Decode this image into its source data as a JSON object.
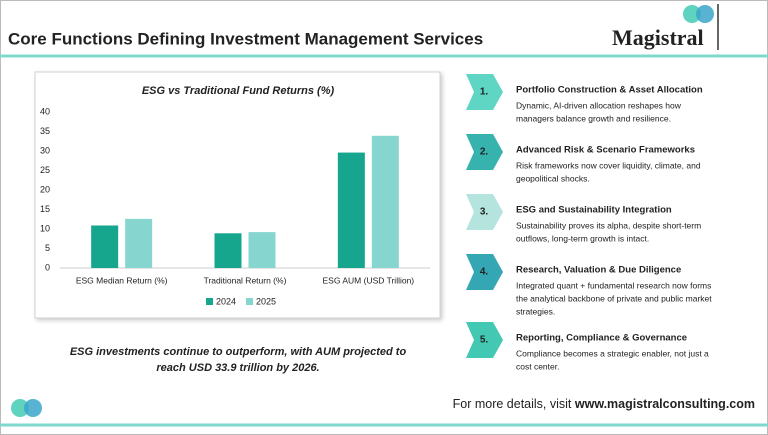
{
  "header": {
    "title": "Core Functions Defining Investment Management Services",
    "logo": "Magistral"
  },
  "chart_data": {
    "type": "bar",
    "title": "ESG vs Traditional Fund Returns (%)",
    "categories": [
      "ESG Median Return (%)",
      "Traditional Return (%)",
      "ESG AUM (USD Trillion)"
    ],
    "series": [
      {
        "name": "2024",
        "color": "#16a68e",
        "values": [
          10.9,
          8.9,
          29.6
        ]
      },
      {
        "name": "2025",
        "color": "#86d6cf",
        "values": [
          12.6,
          9.2,
          33.9
        ]
      }
    ],
    "ylim": [
      0,
      40
    ],
    "yticks": [
      0,
      5,
      10,
      15,
      20,
      25,
      30,
      35,
      40
    ],
    "grid": false,
    "legend": "bottom"
  },
  "caption": [
    "ESG investments continue to outperform, with AUM projected to",
    "reach USD 33.9 trillion by 2026."
  ],
  "items": [
    {
      "number": "1.",
      "title": "Portfolio Construction & Asset Allocation",
      "desc": [
        "Dynamic, AI-driven allocation reshapes how",
        "managers balance growth and resilience."
      ]
    },
    {
      "number": "2.",
      "title": "Advanced Risk & Scenario Frameworks",
      "desc": [
        "Risk frameworks now cover liquidity, climate, and",
        "geopolitical shocks."
      ]
    },
    {
      "number": "3.",
      "title": "ESG and Sustainability Integration",
      "desc": [
        "Sustainability proves its alpha, despite short-term",
        "outflows, long-term growth is intact."
      ]
    },
    {
      "number": "4.",
      "title": "Research, Valuation & Due Diligence",
      "desc": [
        "Integrated quant + fundamental research now forms",
        "the analytical backbone of private and public market",
        "strategies."
      ]
    },
    {
      "number": "5.",
      "title": "Reporting, Compliance & Governance",
      "desc": [
        "Compliance becomes a strategic enabler, not just a",
        "cost center."
      ]
    }
  ],
  "footer": {
    "prefix": "For more details, visit",
    "url": "www.magistralconsulting.com"
  }
}
